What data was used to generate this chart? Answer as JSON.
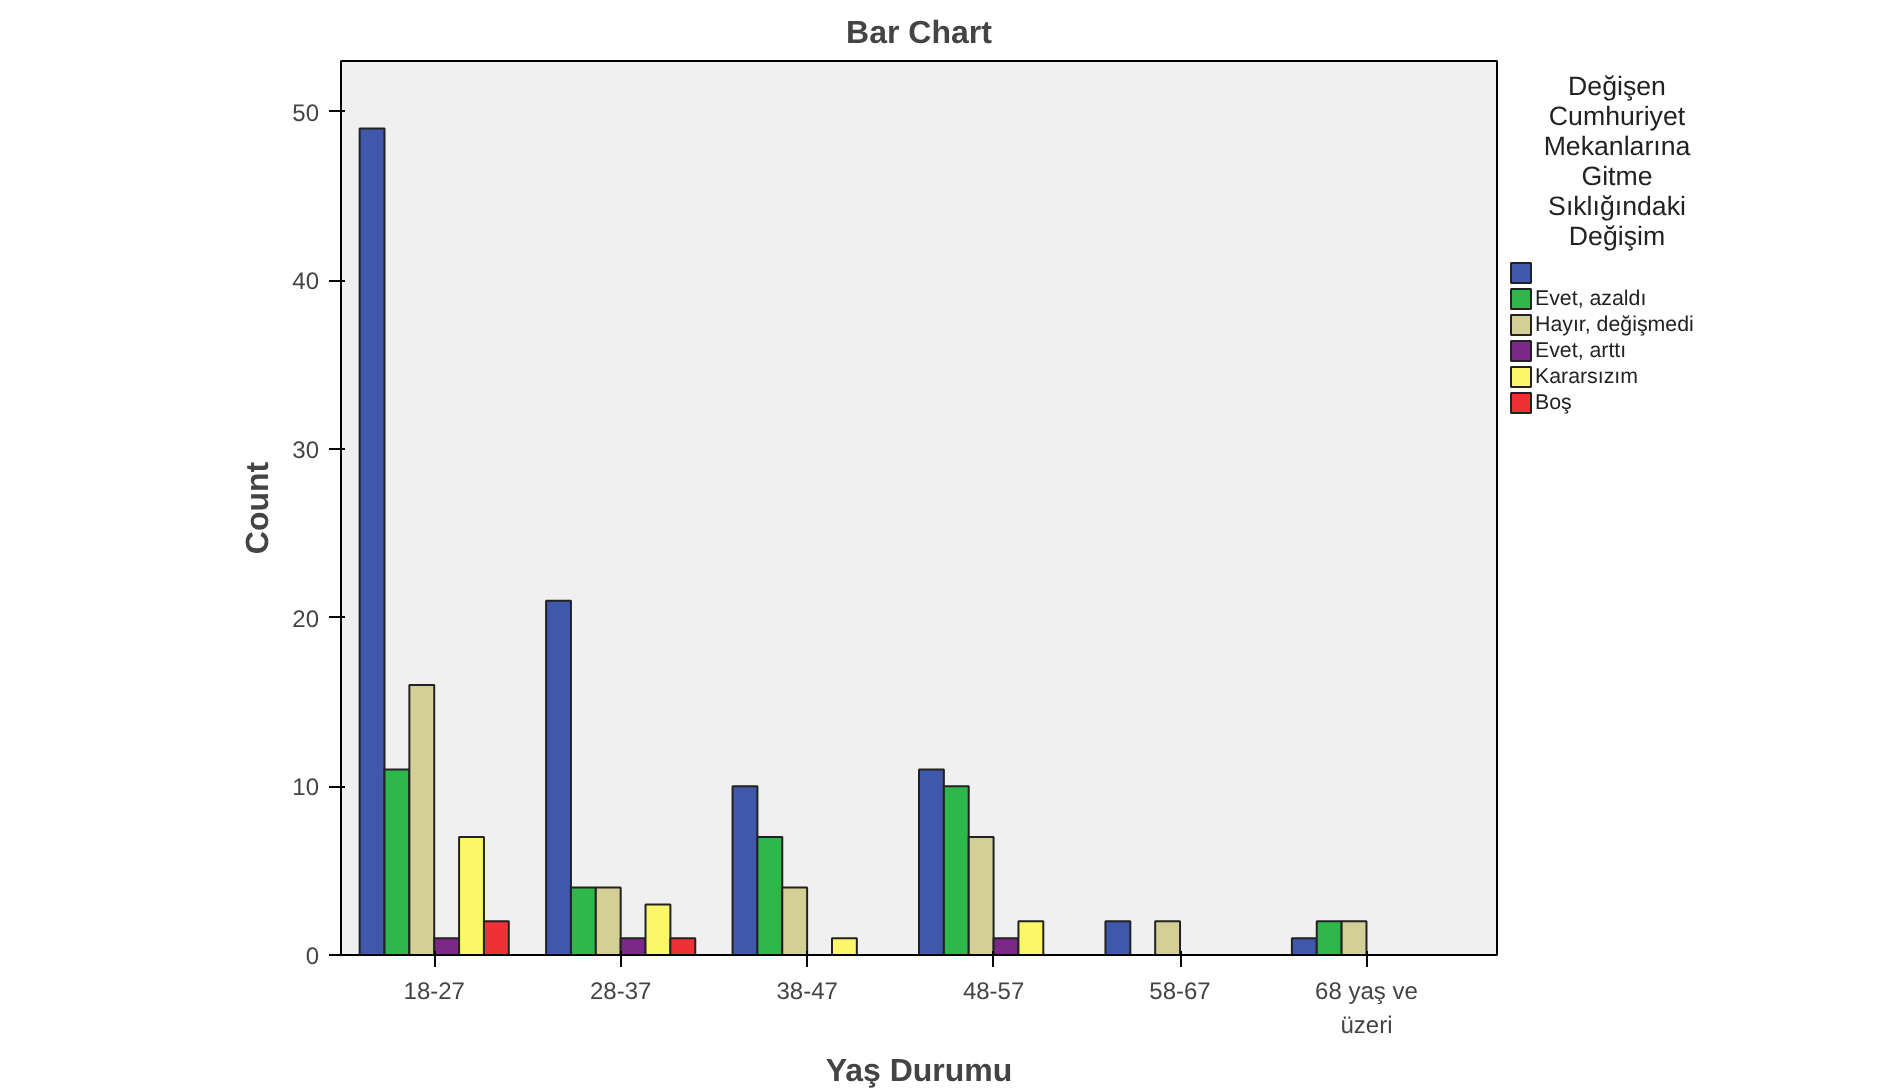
{
  "chart_data": {
    "type": "bar",
    "title": "Bar Chart",
    "xlabel": "Yaş Durumu",
    "ylabel": "Count",
    "legend_title": "Değişen Cumhuriyet Mekanlarına Gitme Sıklığındaki Değişim",
    "legend": "right",
    "categories": [
      "18-27",
      "28-37",
      "38-47",
      "48-57",
      "58-67",
      "68 yaş ve üzeri"
    ],
    "ylim": [
      0,
      53
    ],
    "yticks": [
      0,
      10,
      20,
      30,
      40,
      50
    ],
    "grid": false,
    "series": [
      {
        "color": "#3f58aa",
        "values": [
          49,
          21,
          10,
          11,
          2,
          1
        ]
      },
      {
        "name": "Evet, azaldı",
        "color": "#2eb84b",
        "values": [
          11,
          4,
          7,
          10,
          null,
          2
        ]
      },
      {
        "name": "Hayır, değişmedi",
        "color": "#d4cf97",
        "values": [
          16,
          4,
          4,
          7,
          2,
          2
        ]
      },
      {
        "name": "Evet, arttı",
        "color": "#7a2a86",
        "values": [
          1,
          1,
          null,
          1,
          null,
          null
        ]
      },
      {
        "name": "Kararsızım",
        "color": "#fbf768",
        "values": [
          7,
          3,
          1,
          2,
          null,
          null
        ]
      },
      {
        "name": "Boş",
        "color": "#ee3134",
        "values": [
          2,
          1,
          null,
          null,
          null,
          null
        ]
      }
    ]
  }
}
